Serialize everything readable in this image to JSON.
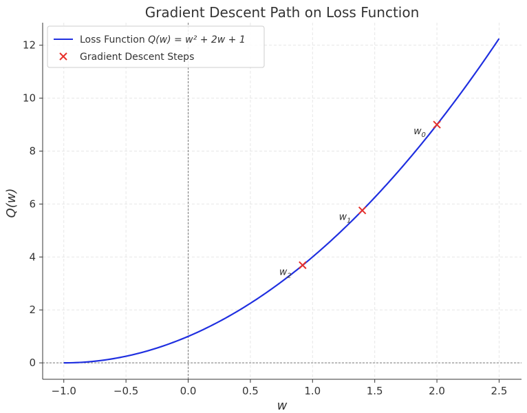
{
  "chart_data": {
    "type": "line",
    "title": "Gradient Descent Path on Loss Function",
    "xlabel": "w",
    "ylabel": "Q(w)",
    "xlim": [
      -1.17,
      2.68
    ],
    "ylim": [
      -0.62,
      12.85
    ],
    "x_ticks": [
      -1.0,
      -0.5,
      0.0,
      0.5,
      1.0,
      1.5,
      2.0,
      2.5
    ],
    "x_tick_labels": [
      "−1.0",
      "−0.5",
      "0.0",
      "0.5",
      "1.0",
      "1.5",
      "2.0",
      "2.5"
    ],
    "y_ticks": [
      0,
      2,
      4,
      6,
      8,
      10,
      12
    ],
    "y_tick_labels": [
      "0",
      "2",
      "4",
      "6",
      "8",
      "10",
      "12"
    ],
    "grid": true,
    "legend_position": "top-left",
    "reference_lines": {
      "x": 0,
      "y": 0
    },
    "series": [
      {
        "name": "Loss Function Q(w) = w² + 2w + 1",
        "kind": "line",
        "color": "#1f2fe0",
        "function": "w^2 + 2w + 1",
        "x_range": [
          -1.0,
          2.5
        ]
      },
      {
        "name": "Gradient Descent Steps",
        "kind": "scatter",
        "marker": "x",
        "color": "#e8302a",
        "points": [
          {
            "x": 2.0,
            "y": 9.0,
            "label": "w",
            "sub": "0"
          },
          {
            "x": 1.4,
            "y": 5.76,
            "label": "w",
            "sub": "1"
          },
          {
            "x": 0.92,
            "y": 3.69,
            "label": "w",
            "sub": "2"
          }
        ]
      }
    ],
    "legend": {
      "line_label_text": "Loss Function ",
      "line_label_math": "Q(w) = w² + 2w + 1",
      "scatter_label": "Gradient Descent Steps"
    }
  }
}
